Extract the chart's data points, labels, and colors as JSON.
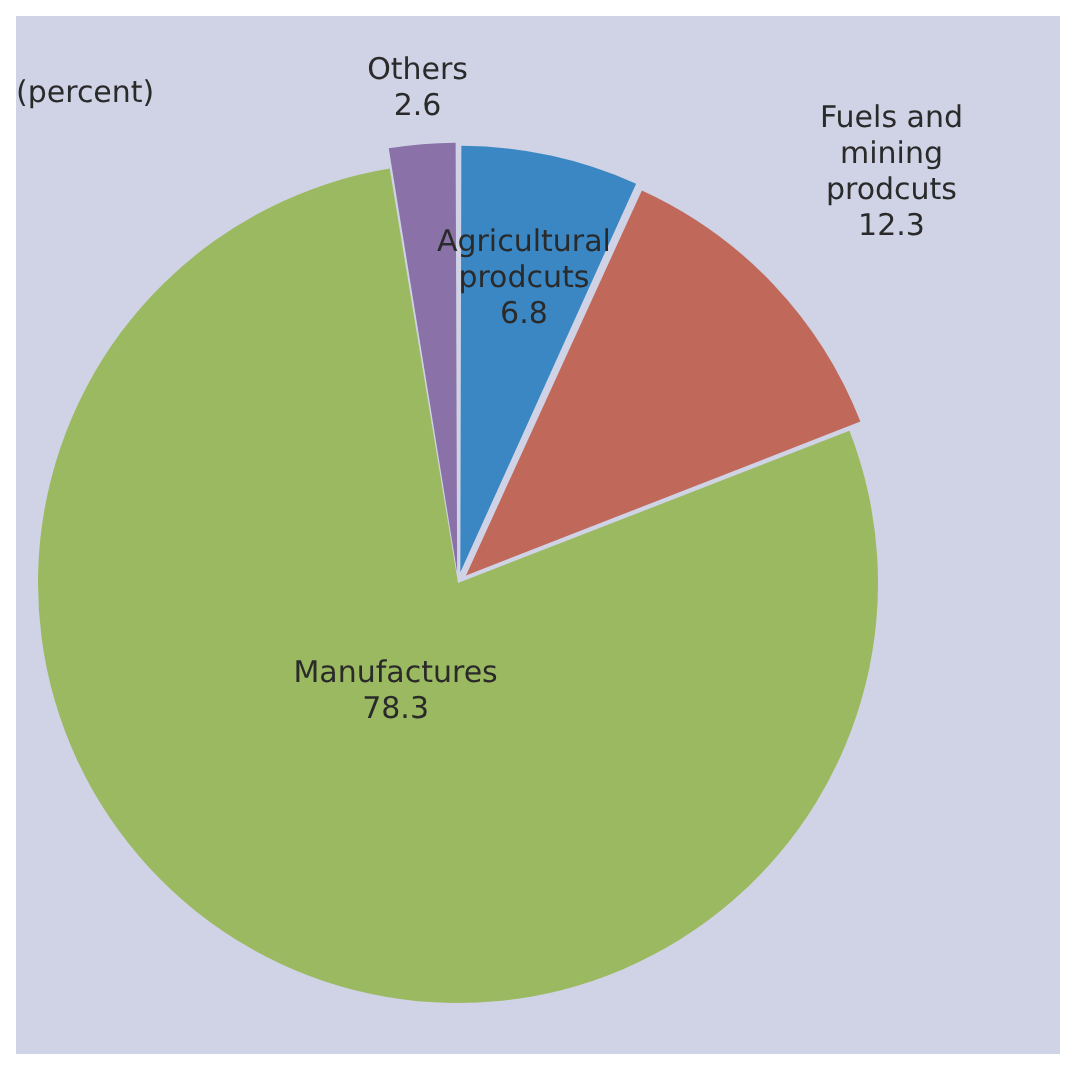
{
  "chart_data": {
    "type": "pie",
    "title": "(percent)",
    "categories": [
      "Agricultural prodcuts",
      "Fuels and mining prodcuts",
      "Manufactures",
      "Others"
    ],
    "values": [
      6.8,
      12.3,
      78.3,
      2.6
    ],
    "colors": [
      "#3a87c4",
      "#c0685a",
      "#9bb960",
      "#8a72a8"
    ],
    "data_labels": true,
    "legend": false
  }
}
